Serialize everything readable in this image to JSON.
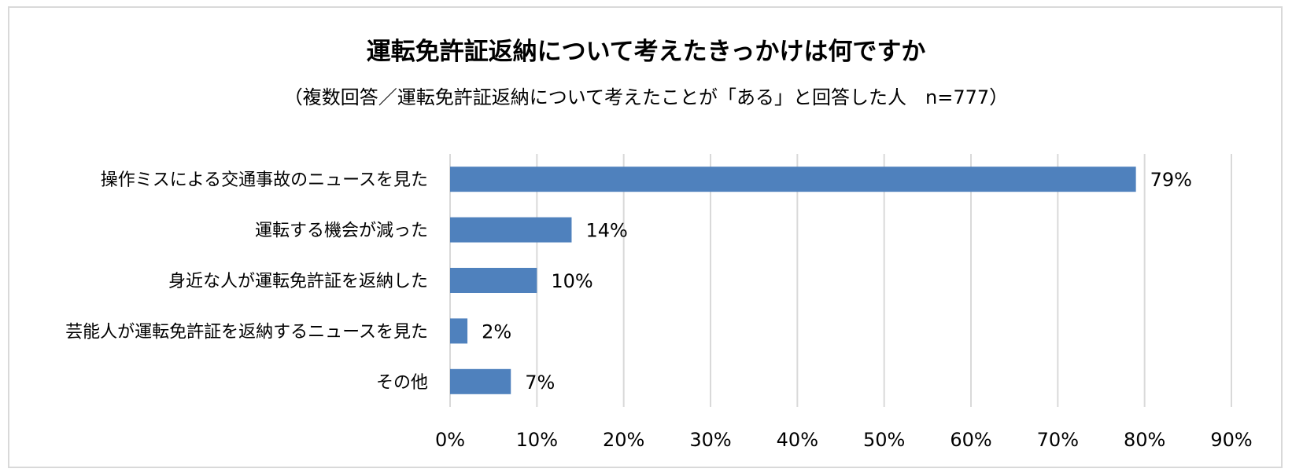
{
  "chart_data": {
    "type": "bar",
    "orientation": "horizontal",
    "title": "運転免許証返納について考えたきっかけは何ですか",
    "subtitle": "（複数回答／運転免許証返納について考えたことが「ある」と回答した人　n=777）",
    "categories": [
      "操作ミスによる交通事故のニュースを見た",
      "運転する機会が減った",
      "身近な人が運転免許証を返納した",
      "芸能人が運転免許証を返納するニュースを見た",
      "その他"
    ],
    "values": [
      79,
      14,
      10,
      2,
      7
    ],
    "data_labels": [
      "79%",
      "14%",
      "10%",
      "2%",
      "7%"
    ],
    "xlim": [
      0,
      90
    ],
    "ticks": [
      0,
      10,
      20,
      30,
      40,
      50,
      60,
      70,
      80,
      90
    ],
    "tick_labels": [
      "0%",
      "10%",
      "20%",
      "30%",
      "40%",
      "50%",
      "60%",
      "70%",
      "80%",
      "90%"
    ],
    "bar_color": "#4f81bd",
    "grid": true,
    "legend": "none"
  }
}
